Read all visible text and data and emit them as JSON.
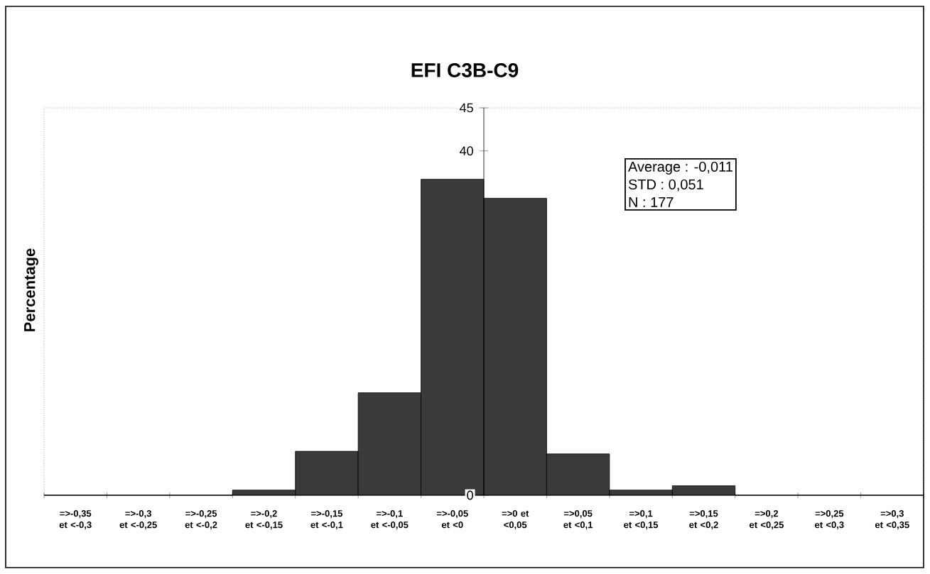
{
  "chart_data": {
    "type": "bar",
    "title": "EFI C3B-C9",
    "ylabel": "Percentage",
    "categories": [
      "=>-0,35 et <-0,3",
      "=>-0,3 et <-0,25",
      "=>-0,25 et <-0,2",
      "=>-0,2 et <-0,15",
      "=>-0,15 et <-0,1",
      "=>-0,1 et <-0,05",
      "=>-0,05 et <0",
      "=>0 et <0,05",
      "=>0,05 et <0,1",
      "=>0,1 et <0,15",
      "=>0,15 et <0,2",
      "=>0,2 et <0,25",
      "=>0,25 et <0,3",
      "=>0,3 et <0,35"
    ],
    "values": [
      0,
      0,
      0,
      0.6,
      5.1,
      11.9,
      36.7,
      34.5,
      4.8,
      0.6,
      1.1,
      0,
      0,
      0
    ],
    "color": "#3a3a3a",
    "ylim": [
      0,
      45
    ],
    "yticks": [
      0,
      40,
      45
    ],
    "annotations": [
      "Average : -0,011",
      "STD : 0,051",
      "N : 177"
    ]
  }
}
